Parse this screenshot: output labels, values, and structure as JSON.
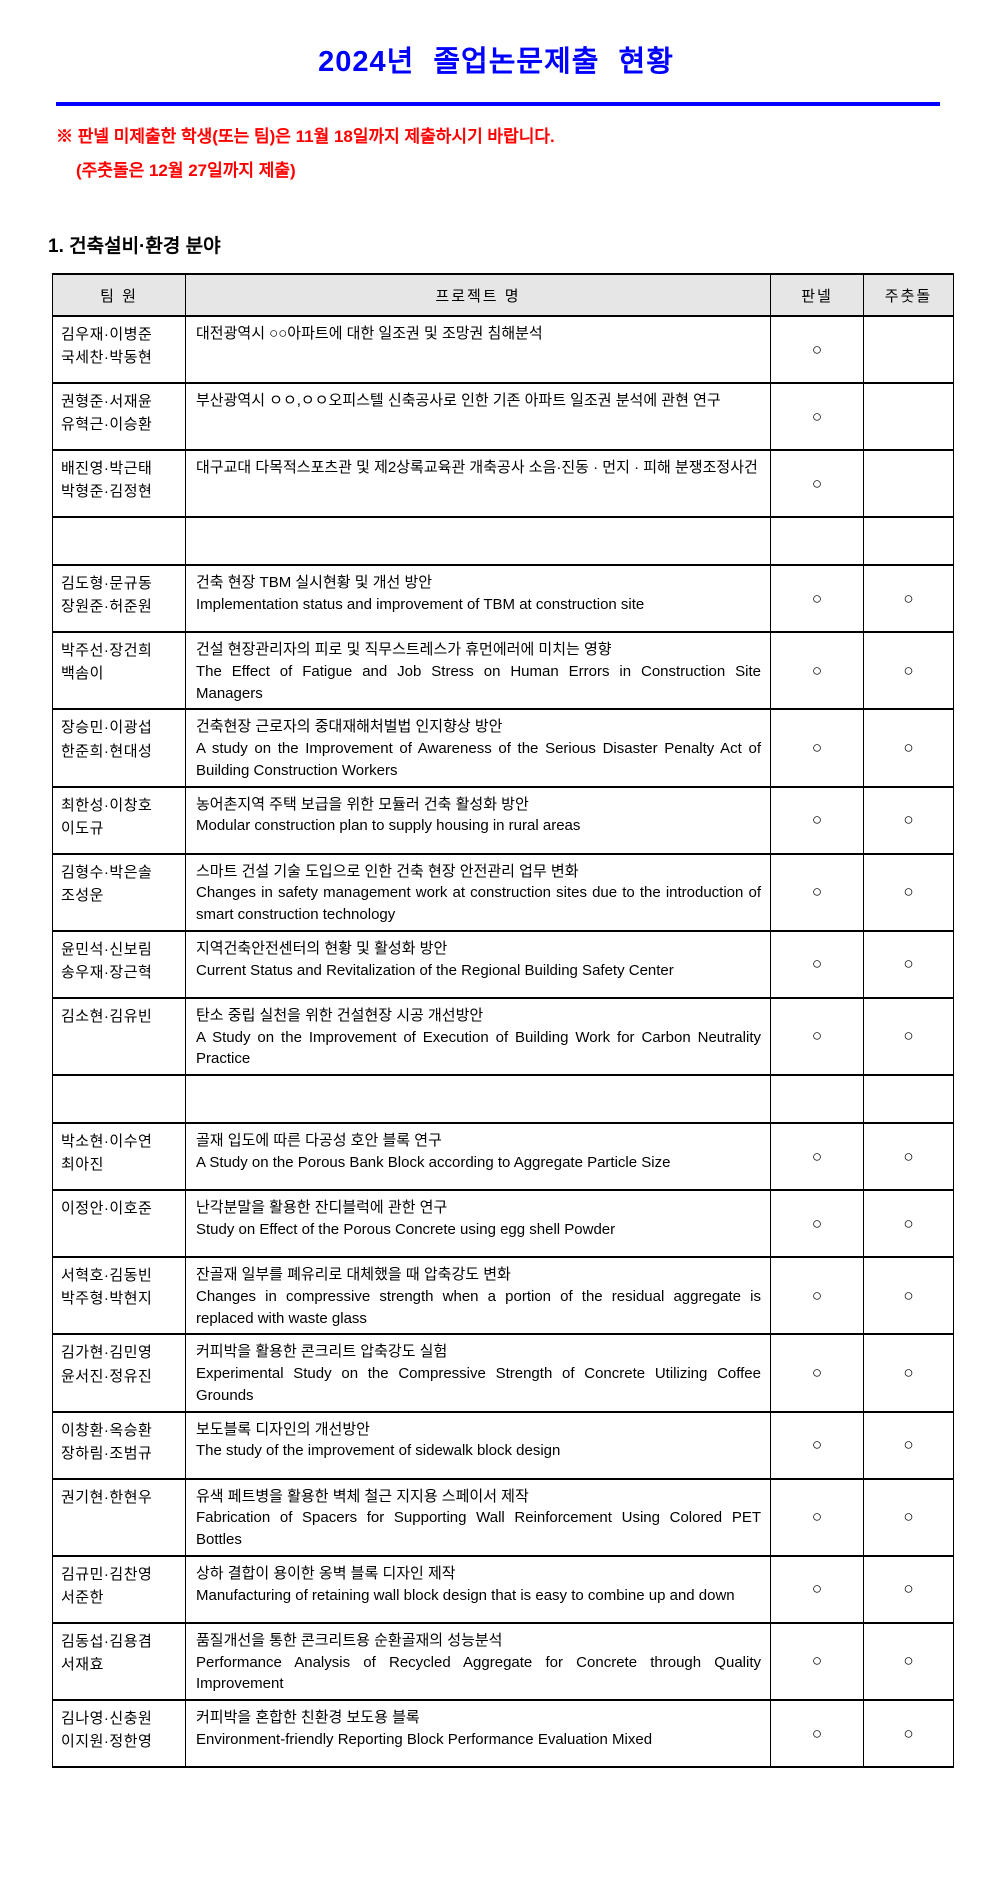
{
  "page": {
    "title": "2024년  졸업논문제출  현황",
    "notice_line1": "※ 판넬 미제출한 학생(또는 팀)은 11월 18일까지 제출하시기 바랍니다.",
    "notice_line2": "(주춧돌은 12월 27일까지 제출)",
    "section_heading": "1. 건축설비·환경 분야"
  },
  "colors": {
    "title_blue": "#0000ff",
    "notice_red": "#ff0000",
    "header_gray": "#e6e6e6",
    "border_black": "#000000"
  },
  "table": {
    "headers": [
      "팀 원",
      "프로젝트 명",
      "판넬",
      "주춧돌"
    ],
    "check_mark": "○",
    "rows": [
      {
        "team": [
          "김우재·이병준",
          "국세찬·박동현"
        ],
        "project_ko": "대전광역시 ○○아파트에 대한 일조권 및 조망권 침해분석",
        "project_en": "",
        "panel": true,
        "cornerstone": false
      },
      {
        "team": [
          "권형준·서재윤",
          "유혁근·이승환"
        ],
        "project_ko": "부산광역시 ㅇㅇ,ㅇㅇ오피스텔 신축공사로 인한 기존 아파트 일조권 분석에 관현 연구",
        "project_en": "",
        "panel": true,
        "cornerstone": false
      },
      {
        "team": [
          "배진영·박근태",
          "박형준·김정현"
        ],
        "project_ko": "대구교대 다목적스포츠관 및 제2상록교육관 개축공사 소음·진동 · 먼지 · 피해 분쟁조정사건",
        "project_en": "",
        "panel": true,
        "cornerstone": false
      },
      {
        "team": [],
        "project_ko": "",
        "project_en": "",
        "panel": false,
        "cornerstone": false
      },
      {
        "team": [
          "김도형·문규동",
          "장원준·허준원"
        ],
        "project_ko": "건축 현장 TBM 실시현황 및 개선 방안",
        "project_en": "Implementation status and improvement of TBM at construction site",
        "panel": true,
        "cornerstone": true
      },
      {
        "team": [
          "박주선·장건희",
          "백솜이"
        ],
        "project_ko": "건설 현장관리자의 피로 및 직무스트레스가 휴먼에러에 미치는 영향",
        "project_en": "The Effect of Fatigue and Job Stress on Human Errors in Construction Site Managers",
        "panel": true,
        "cornerstone": true
      },
      {
        "team": [
          "장승민·이광섭",
          "한준희·현대성"
        ],
        "project_ko": "건축현장 근로자의 중대재해처벌법 인지향상 방안",
        "project_en": "A study on the Improvement of Awareness of the Serious Disaster Penalty Act of Building Construction Workers",
        "panel": true,
        "cornerstone": true
      },
      {
        "team": [
          "최한성·이창호",
          "이도규"
        ],
        "project_ko": "농어촌지역 주택 보급을 위한 모듈러 건축 활성화 방안",
        "project_en": "Modular construction plan to supply housing in rural areas",
        "panel": true,
        "cornerstone": true
      },
      {
        "team": [
          "김형수·박은솔",
          "조성운"
        ],
        "project_ko": "스마트 건설 기술 도입으로 인한 건축 현장 안전관리 업무 변화",
        "project_en": "Changes in safety management work at construction sites due to the introduction of smart construction technology",
        "panel": true,
        "cornerstone": true
      },
      {
        "team": [
          "윤민석·신보림",
          "송우재·장근혁"
        ],
        "project_ko": "지역건축안전센터의 현황 및 활성화 방안",
        "project_en": "Current Status and Revitalization of the Regional Building Safety Center",
        "panel": true,
        "cornerstone": true
      },
      {
        "team": [
          "김소현·김유빈"
        ],
        "project_ko": "탄소 중립 실천을 위한 건설현장 시공 개선방안",
        "project_en": "A Study on the Improvement of Execution of Building Work for Carbon Neutrality Practice",
        "panel": true,
        "cornerstone": true
      },
      {
        "team": [],
        "project_ko": "",
        "project_en": "",
        "panel": false,
        "cornerstone": false
      },
      {
        "team": [
          "박소현·이수연",
          "최아진"
        ],
        "project_ko": "골재 입도에 따른 다공성 호안 블록 연구",
        "project_en": "A Study on the Porous Bank Block according to Aggregate Particle Size",
        "panel": true,
        "cornerstone": true
      },
      {
        "team": [
          "이정안·이호준"
        ],
        "project_ko": "난각분말을 활용한 잔디블럭에 관한 연구",
        "project_en": "Study on Effect of the Porous Concrete using egg shell Powder",
        "panel": true,
        "cornerstone": true
      },
      {
        "team": [
          "서혁호·김동빈",
          "박주형·박현지"
        ],
        "project_ko": "잔골재 일부를 폐유리로 대체했을 때 압축강도 변화",
        "project_en": "Changes in compressive strength when a portion of the residual aggregate is replaced with waste glass",
        "panel": true,
        "cornerstone": true
      },
      {
        "team": [
          "김가현·김민영",
          "윤서진·정유진"
        ],
        "project_ko": "커피박을 활용한 콘크리트 압축강도 실험",
        "project_en": "Experimental Study on the Compressive Strength of Concrete Utilizing Coffee Grounds",
        "panel": true,
        "cornerstone": true
      },
      {
        "team": [
          "이창환·옥승환",
          "장하림·조범규"
        ],
        "project_ko": "보도블록 디자인의 개선방안",
        "project_en": "The study of the improvement of sidewalk block design",
        "panel": true,
        "cornerstone": true
      },
      {
        "team": [
          "권기현·한현우"
        ],
        "project_ko": "유색 페트병을 활용한 벽체 철근 지지용 스페이서 제작",
        "project_en": "Fabrication of Spacers for Supporting Wall Reinforcement Using Colored PET Bottles",
        "panel": true,
        "cornerstone": true
      },
      {
        "team": [
          "김규민·김찬영",
          "서준한"
        ],
        "project_ko": "상하 결합이 용이한 옹벽 블록 디자인 제작",
        "project_en": "Manufacturing of retaining wall block design that is easy to combine up and down",
        "panel": true,
        "cornerstone": true
      },
      {
        "team": [
          "김동섭·김용겸",
          "서재효"
        ],
        "project_ko": "품질개선을 통한 콘크리트용 순환골재의 성능분석",
        "project_en": "Performance Analysis of Recycled Aggregate for Concrete through Quality Improvement",
        "panel": true,
        "cornerstone": true
      },
      {
        "team": [
          "김나영·신충원",
          "이지원·정한영"
        ],
        "project_ko": "커피박을 혼합한 친환경 보도용 블록",
        "project_en": "Environment-friendly Reporting Block Performance Evaluation Mixed",
        "panel": true,
        "cornerstone": true
      }
    ]
  }
}
